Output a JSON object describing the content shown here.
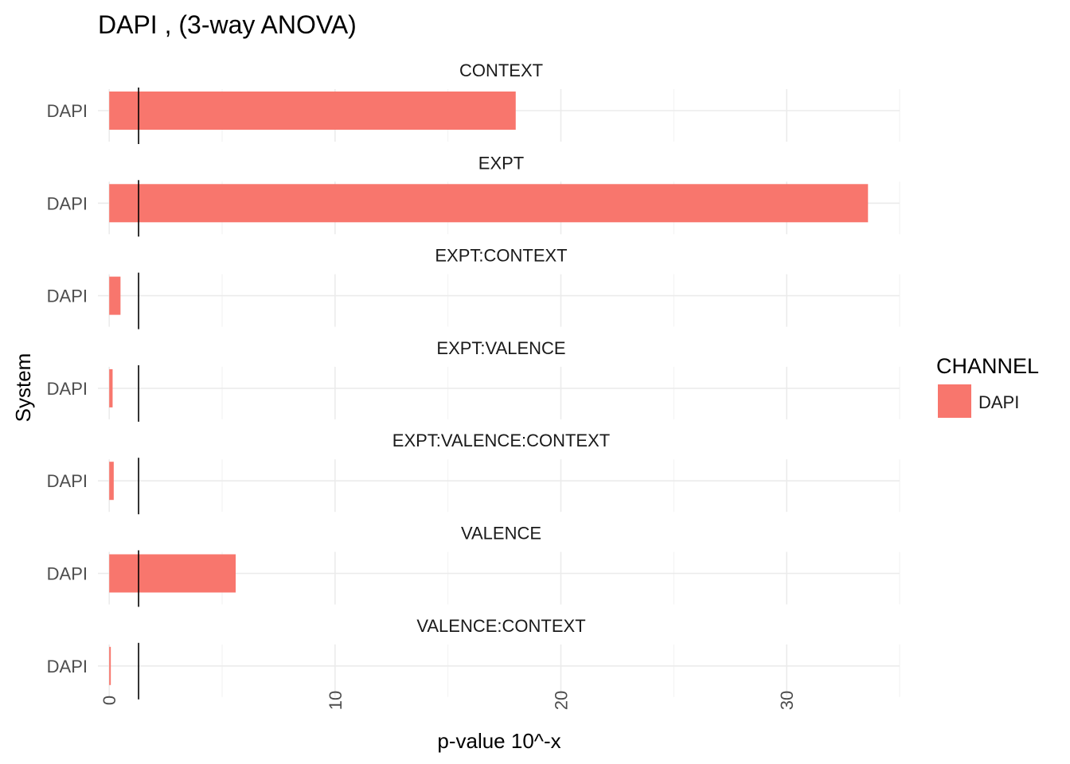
{
  "chart_data": {
    "type": "bar",
    "orientation": "horizontal",
    "title": "DAPI , (3-way ANOVA)",
    "xlabel": "p-value 10^-x",
    "ylabel": "System",
    "xlim": [
      -0.5,
      35.0
    ],
    "x_ticks": [
      "0",
      "10",
      "20",
      "30"
    ],
    "x_tick_values": [
      0,
      10,
      20,
      30
    ],
    "threshold_line": 1.3,
    "legend": {
      "title": "CHANNEL",
      "position": "right",
      "items": [
        {
          "label": "DAPI",
          "color": "#F8766D"
        }
      ]
    },
    "facets": [
      {
        "label": "CONTEXT",
        "category": "DAPI",
        "value": 18.0
      },
      {
        "label": "EXPT",
        "category": "DAPI",
        "value": 33.6
      },
      {
        "label": "EXPT:CONTEXT",
        "category": "DAPI",
        "value": 0.5
      },
      {
        "label": "EXPT:VALENCE",
        "category": "DAPI",
        "value": 0.15
      },
      {
        "label": "EXPT:VALENCE:CONTEXT",
        "category": "DAPI",
        "value": 0.2
      },
      {
        "label": "VALENCE",
        "category": "DAPI",
        "value": 5.6
      },
      {
        "label": "VALENCE:CONTEXT",
        "category": "DAPI",
        "value": 0.05
      }
    ],
    "bar_color": "#F8766D",
    "grid": true
  }
}
